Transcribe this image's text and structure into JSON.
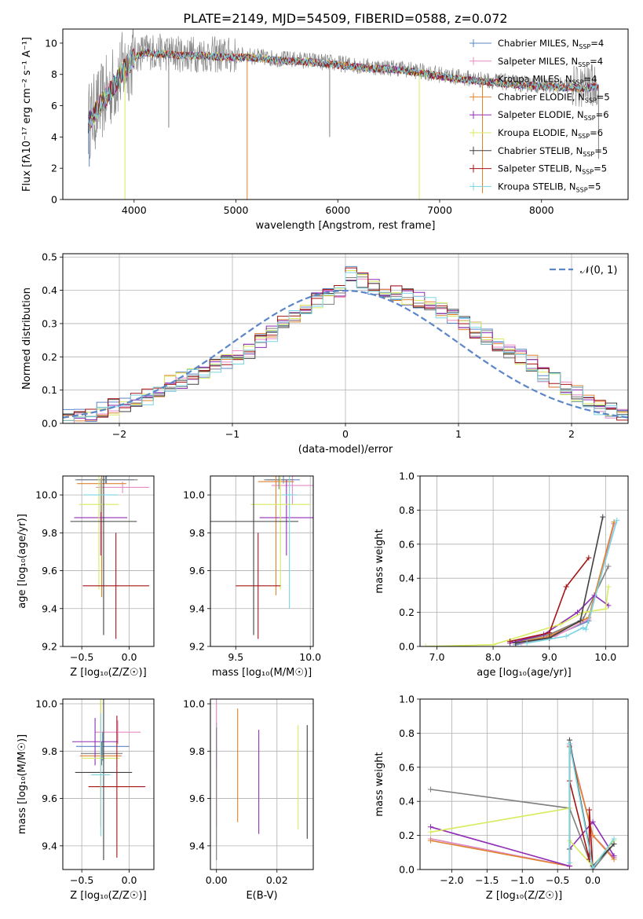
{
  "title": "PLATE=2149, MJD=54509, FIBERID=0588, z=0.072",
  "model_names": [
    "Chabrier MILES",
    "Salpeter MILES",
    "Kroupa MILES",
    "Chabrier ELODIE",
    "Salpeter ELODIE",
    "Kroupa ELODIE",
    "Chabrier STELIB",
    "Salpeter STELIB",
    "Kroupa STELIB"
  ],
  "model_nssp": [
    4,
    4,
    4,
    5,
    6,
    6,
    5,
    5,
    5
  ],
  "model_colors": [
    "#5b86c7",
    "#e88ac4",
    "#7f7f7f",
    "#e0822e",
    "#8f2db5",
    "#d8ea5e",
    "#404040",
    "#a31515",
    "#7ad5e2"
  ],
  "chart_data": [
    {
      "type": "line",
      "id": "spectrum",
      "xlabel": "wavelength [Angstrom, rest frame]",
      "ylabel": "Flux [fλ10⁻¹⁷ erg cm⁻² s⁻¹ A⁻¹]",
      "xlim": [
        3300,
        8850
      ],
      "ylim": [
        0,
        10.9
      ],
      "xticks": [
        4000,
        5000,
        6000,
        7000,
        8000
      ],
      "yticks": [
        0,
        2,
        4,
        6,
        8,
        10
      ],
      "continuum": {
        "x": [
          3550,
          3700,
          3800,
          3900,
          4000,
          4100,
          4300,
          4500,
          4700,
          4900,
          5100,
          5400,
          5700,
          6000,
          6300,
          6600,
          6900,
          7200,
          7500,
          7800,
          8100,
          8400,
          8500
        ],
        "y": [
          5.0,
          6.4,
          7.4,
          8.4,
          9.2,
          9.5,
          9.4,
          9.3,
          9.3,
          9.2,
          9.2,
          9.0,
          8.9,
          8.7,
          8.5,
          8.4,
          8.1,
          7.8,
          7.6,
          7.4,
          7.3,
          7.2,
          7.3
        ]
      },
      "deep_lines": [
        {
          "x": 3560,
          "y": 2.1,
          "series": "Chabrier MILES"
        },
        {
          "x": 3910,
          "y": 0.0,
          "series": "Kroupa ELODIE"
        },
        {
          "x": 5110,
          "y": 0.0,
          "series": "Chabrier ELODIE"
        },
        {
          "x": 6800,
          "y": 0.0,
          "series": "Kroupa ELODIE"
        },
        {
          "x": 7420,
          "y": 0.4,
          "series": "Chabrier ELODIE"
        },
        {
          "x": 5920,
          "y": 4.0,
          "series": "Kroupa MILES"
        },
        {
          "x": 4340,
          "y": 4.6,
          "series": "Kroupa MILES"
        },
        {
          "x": 8560,
          "y": 2.6,
          "series": "Kroupa MILES"
        }
      ]
    },
    {
      "type": "line",
      "id": "residuals",
      "xlabel": "(data-model)/error",
      "ylabel": "Normed distribution",
      "xlim": [
        -2.5,
        2.5
      ],
      "ylim": [
        0,
        0.51
      ],
      "xticks": [
        -2,
        -1,
        0,
        1,
        2
      ],
      "yticks": [
        0.0,
        0.1,
        0.2,
        0.3,
        0.4,
        0.5
      ],
      "bin_edges_start": -2.5,
      "bin_width": 0.1,
      "histogram": [
        0.02,
        0.02,
        0.03,
        0.04,
        0.05,
        0.06,
        0.07,
        0.08,
        0.1,
        0.12,
        0.13,
        0.14,
        0.16,
        0.17,
        0.19,
        0.2,
        0.22,
        0.25,
        0.27,
        0.3,
        0.32,
        0.34,
        0.37,
        0.38,
        0.4,
        0.45,
        0.43,
        0.41,
        0.4,
        0.39,
        0.38,
        0.37,
        0.36,
        0.34,
        0.32,
        0.3,
        0.28,
        0.26,
        0.24,
        0.22,
        0.2,
        0.18,
        0.15,
        0.13,
        0.11,
        0.09,
        0.07,
        0.05,
        0.04,
        0.03
      ],
      "gaussian": {
        "label": "𝒩(0, 1)",
        "mu": 0,
        "sigma": 1,
        "color": "#5b86c7"
      }
    },
    {
      "type": "scatter",
      "id": "z-age",
      "xlabel": "Z [log₁₀(Z/Z☉)]",
      "ylabel": "age  [log₁₀(age/yr)]",
      "xlim": [
        -0.7,
        0.26
      ],
      "ylim": [
        9.2,
        10.1
      ],
      "xticks": [
        -0.5,
        0.0
      ],
      "yticks": [
        9.2,
        9.4,
        9.6,
        9.8,
        10.0
      ],
      "points": [
        {
          "x": -0.25,
          "y": 10.08,
          "xerr": 0.3,
          "yerr": 0.02
        },
        {
          "x": -0.07,
          "y": 10.04,
          "xerr": 0.28,
          "yerr": 0.03
        },
        {
          "x": -0.24,
          "y": 10.08,
          "xerr": 0.33,
          "yerr": 0.02
        },
        {
          "x": -0.29,
          "y": 10.06,
          "xerr": 0.26,
          "yerr": 0.6
        },
        {
          "x": -0.3,
          "y": 9.88,
          "xerr": 0.28,
          "yerr": 0.2
        },
        {
          "x": -0.32,
          "y": 9.95,
          "xerr": 0.21,
          "yerr": 0.45
        },
        {
          "x": -0.27,
          "y": 9.86,
          "xerr": 0.35,
          "yerr": 0.6
        },
        {
          "x": -0.14,
          "y": 9.52,
          "xerr": 0.35,
          "yerr": 0.28
        },
        {
          "x": -0.3,
          "y": 10.0,
          "xerr": 0.18,
          "yerr": 0.09
        }
      ]
    },
    {
      "type": "scatter",
      "id": "mass-age",
      "xlabel": "mass [log₁₀(M/M☉)]",
      "ylabel": "",
      "xlim": [
        9.33,
        10.02
      ],
      "ylim": [
        9.2,
        10.1
      ],
      "xticks": [
        9.5,
        10.0
      ],
      "yticks": [
        9.2,
        9.4,
        9.6,
        9.8,
        10.0
      ],
      "points": [
        {
          "x": 9.82,
          "y": 10.08,
          "xerr": 0.11,
          "yerr": 0.02
        },
        {
          "x": 9.88,
          "y": 10.05,
          "xerr": 0.14,
          "yerr": 0.1
        },
        {
          "x": 9.79,
          "y": 10.08,
          "xerr": 0.1,
          "yerr": 0.05
        },
        {
          "x": 9.77,
          "y": 10.07,
          "xerr": 0.12,
          "yerr": 0.6
        },
        {
          "x": 9.84,
          "y": 9.88,
          "xerr": 0.18,
          "yerr": 0.2
        },
        {
          "x": 9.8,
          "y": 9.95,
          "xerr": 0.2,
          "yerr": 0.45
        },
        {
          "x": 9.62,
          "y": 9.86,
          "xerr": 0.3,
          "yerr": 0.6
        },
        {
          "x": 9.65,
          "y": 9.52,
          "xerr": 0.15,
          "yerr": 0.28
        },
        {
          "x": 9.86,
          "y": 10.0,
          "xerr": 0.05,
          "yerr": 0.6
        }
      ]
    },
    {
      "type": "line",
      "id": "age-weight",
      "xlabel": "age  [log₁₀(age/yr)]",
      "ylabel": "mass weight",
      "xlim": [
        6.7,
        10.4
      ],
      "ylim": [
        0.0,
        1.0
      ],
      "xticks": [
        7,
        8,
        9,
        10
      ],
      "yticks": [
        0.0,
        0.2,
        0.4,
        0.6,
        0.8,
        1.0
      ],
      "series": [
        {
          "x": [
            8.4,
            9.0,
            9.7,
            10.15
          ],
          "y": [
            0.01,
            0.05,
            0.15,
            0.72
          ]
        },
        {
          "x": [
            8.5,
            9.1,
            9.7,
            10.15
          ],
          "y": [
            0.02,
            0.06,
            0.16,
            0.72
          ]
        },
        {
          "x": [
            8.3,
            9.0,
            9.6,
            10.05
          ],
          "y": [
            0.02,
            0.07,
            0.16,
            0.47
          ]
        },
        {
          "x": [
            8.4,
            9.0,
            9.7,
            10.15
          ],
          "y": [
            0.02,
            0.06,
            0.17,
            0.73
          ]
        },
        {
          "x": [
            8.3,
            8.9,
            9.5,
            9.8,
            10.05
          ],
          "y": [
            0.02,
            0.07,
            0.2,
            0.3,
            0.24
          ]
        },
        {
          "x": [
            6.8,
            8.0,
            9.2,
            9.6,
            10.0,
            10.05
          ],
          "y": [
            0.0,
            0.01,
            0.13,
            0.2,
            0.22,
            0.35
          ]
        },
        {
          "x": [
            8.4,
            9.0,
            9.55,
            9.95
          ],
          "y": [
            0.02,
            0.05,
            0.15,
            0.76
          ]
        },
        {
          "x": [
            8.3,
            9.0,
            9.3,
            9.7
          ],
          "y": [
            0.03,
            0.08,
            0.35,
            0.52
          ]
        },
        {
          "x": [
            8.6,
            9.3,
            9.6,
            9.65,
            10.2
          ],
          "y": [
            0.02,
            0.06,
            0.11,
            0.1,
            0.74
          ]
        }
      ]
    },
    {
      "type": "scatter",
      "id": "z-mass",
      "xlabel": "Z [log₁₀(Z/Z☉)]",
      "ylabel": "mass [log₁₀(M/M☉)]",
      "xlim": [
        -0.7,
        0.26
      ],
      "ylim": [
        9.3,
        10.02
      ],
      "xticks": [
        -0.5,
        0.0
      ],
      "yticks": [
        9.4,
        9.6,
        9.8,
        10.0
      ],
      "points": [
        {
          "x": -0.28,
          "y": 9.82,
          "xerr": 0.28,
          "yerr": 0.06
        },
        {
          "x": -0.12,
          "y": 9.88,
          "xerr": 0.24,
          "yerr": 0.05
        },
        {
          "x": -0.29,
          "y": 9.79,
          "xerr": 0.22,
          "yerr": 0.05
        },
        {
          "x": -0.3,
          "y": 9.78,
          "xerr": 0.22,
          "yerr": 0.3
        },
        {
          "x": -0.36,
          "y": 9.84,
          "xerr": 0.24,
          "yerr": 0.1
        },
        {
          "x": -0.3,
          "y": 9.77,
          "xerr": 0.2,
          "yerr": 0.28
        },
        {
          "x": -0.27,
          "y": 9.71,
          "xerr": 0.3,
          "yerr": 0.37
        },
        {
          "x": -0.13,
          "y": 9.65,
          "xerr": 0.3,
          "yerr": 0.3
        },
        {
          "x": -0.3,
          "y": 9.7,
          "xerr": 0.1,
          "yerr": 0.26
        }
      ]
    },
    {
      "type": "scatter",
      "id": "ebv-mass",
      "xlabel": "E(B-V)",
      "ylabel": "",
      "xlim": [
        -0.002,
        0.032
      ],
      "ylim": [
        9.3,
        10.02
      ],
      "xticks": [
        0.0,
        0.02
      ],
      "yticks": [
        9.4,
        9.6,
        9.8,
        10.0
      ],
      "points": [
        {
          "x": 0.0,
          "y": 9.82,
          "yerr": 0.1
        },
        {
          "x": 0.0,
          "y": 9.78,
          "yerr": 0.3
        },
        {
          "x": 0.0,
          "y": 9.62,
          "yerr": 0.28
        },
        {
          "x": 0.007,
          "y": 9.74,
          "yerr": 0.24
        },
        {
          "x": 0.014,
          "y": 9.67,
          "yerr": 0.22
        },
        {
          "x": 0.027,
          "y": 9.69,
          "yerr": 0.22
        },
        {
          "x": 0.03,
          "y": 9.67,
          "yerr": 0.24
        }
      ]
    },
    {
      "type": "line",
      "id": "z-weight",
      "xlabel": "Z [log₁₀(Z/Z☉)]",
      "ylabel": "mass weight",
      "xlim": [
        -2.45,
        0.5
      ],
      "ylim": [
        0.0,
        1.0
      ],
      "xticks": [
        -2.0,
        -1.5,
        -1.0,
        -0.5,
        0.0
      ],
      "yticks": [
        0.0,
        0.2,
        0.4,
        0.6,
        0.8,
        1.0
      ],
      "series": [
        {
          "x": [
            -2.3,
            -0.33,
            -0.33,
            0.0,
            0.3
          ],
          "y": [
            0.18,
            0.02,
            0.72,
            0.2,
            0.07
          ]
        },
        {
          "x": [
            -2.3,
            -0.33,
            -0.33,
            0.0,
            0.3
          ],
          "y": [
            0.18,
            0.02,
            0.73,
            0.2,
            0.07
          ]
        },
        {
          "x": [
            -2.3,
            -0.33,
            0.0,
            0.3
          ],
          "y": [
            0.47,
            0.36,
            0.0,
            0.15
          ]
        },
        {
          "x": [
            -2.3,
            -0.33,
            -0.33,
            0.0,
            0.3
          ],
          "y": [
            0.17,
            0.02,
            0.72,
            0.2,
            0.06
          ]
        },
        {
          "x": [
            -2.3,
            -0.33,
            -0.33,
            0.0,
            0.3
          ],
          "y": [
            0.25,
            0.02,
            0.12,
            0.28,
            0.08
          ]
        },
        {
          "x": [
            -2.3,
            -0.33,
            -0.33,
            0.0,
            0.3
          ],
          "y": [
            0.22,
            0.36,
            0.17,
            0.02,
            0.17
          ]
        },
        {
          "x": [
            -0.33,
            -0.33,
            0.0,
            0.3
          ],
          "y": [
            0.12,
            0.76,
            0.02,
            0.15
          ]
        },
        {
          "x": [
            -0.33,
            -0.05,
            -0.05,
            0.0
          ],
          "y": [
            0.52,
            0.06,
            0.35,
            0.0
          ]
        },
        {
          "x": [
            -0.33,
            -0.33,
            0.0,
            0.3
          ],
          "y": [
            0.04,
            0.74,
            0.01,
            0.18
          ]
        }
      ]
    }
  ]
}
